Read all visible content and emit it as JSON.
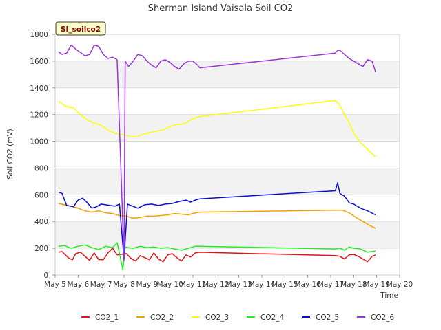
{
  "chart_data": {
    "type": "line",
    "title": "Sherman Island Vaisala Soil CO2",
    "xlabel": "Time",
    "ylabel": "Soil CO2 (mV)",
    "badge": "SI_soilco2",
    "xlim": [
      5,
      20
    ],
    "ylim": [
      0,
      1800
    ],
    "x_ticks": [
      5,
      6,
      7,
      8,
      9,
      10,
      11,
      12,
      13,
      14,
      15,
      16,
      17,
      18,
      19,
      20
    ],
    "x_tick_labels": [
      "May 5",
      "May 6",
      "May 7",
      "May 8",
      "May 9",
      "May 10",
      "May 11",
      "May 12",
      "May 13",
      "May 14",
      "May 15",
      "May 16",
      "May 17",
      "May 18",
      "May 19",
      "May 20"
    ],
    "y_ticks": [
      0,
      200,
      400,
      600,
      800,
      1000,
      1200,
      1400,
      1600,
      1800
    ],
    "y_tick_labels": [
      "0",
      "200",
      "400",
      "600",
      "800",
      "1000",
      "1200",
      "1400",
      "1600",
      "1800"
    ],
    "grid": true,
    "legend_position": "bottom",
    "series": [
      {
        "name": "CO2_1",
        "color": "#e8101a",
        "x": [
          5.15,
          5.3,
          5.45,
          5.6,
          5.75,
          5.9,
          6.1,
          6.3,
          6.5,
          6.7,
          6.9,
          7.1,
          7.3,
          7.5,
          7.7,
          8.1,
          8.3,
          8.5,
          8.7,
          8.9,
          9.1,
          9.3,
          9.5,
          9.7,
          9.9,
          10.1,
          10.3,
          10.5,
          10.7,
          10.9,
          11.1,
          11.3,
          17.2,
          17.4,
          17.6,
          17.8,
          18.0,
          18.2,
          18.4,
          18.6,
          18.8,
          18.95
        ],
        "y": [
          170,
          175,
          150,
          125,
          115,
          160,
          170,
          140,
          110,
          165,
          115,
          115,
          165,
          200,
          150,
          160,
          125,
          105,
          145,
          130,
          115,
          165,
          120,
          100,
          150,
          160,
          130,
          105,
          150,
          135,
          165,
          170,
          145,
          140,
          120,
          150,
          155,
          140,
          120,
          100,
          140,
          150
        ]
      },
      {
        "name": "CO2_2",
        "color": "#f5a000",
        "x": [
          5.15,
          5.4,
          5.7,
          6.0,
          6.3,
          6.6,
          6.9,
          7.2,
          7.5,
          7.8,
          8.1,
          8.4,
          8.7,
          9.0,
          9.3,
          9.6,
          9.9,
          10.2,
          10.5,
          10.8,
          11.1,
          11.3,
          17.2,
          17.5,
          17.8,
          18.1,
          18.4,
          18.7,
          18.95
        ],
        "y": [
          535,
          525,
          515,
          500,
          480,
          470,
          480,
          465,
          460,
          445,
          440,
          425,
          430,
          440,
          440,
          445,
          450,
          460,
          455,
          450,
          465,
          470,
          485,
          485,
          465,
          430,
          400,
          370,
          350
        ]
      },
      {
        "name": "CO2_3",
        "color": "#ffff00",
        "x": [
          5.15,
          5.3,
          5.5,
          5.8,
          6.1,
          6.4,
          6.7,
          7.0,
          7.3,
          7.6,
          7.9,
          8.2,
          8.5,
          8.8,
          9.1,
          9.4,
          9.7,
          10.0,
          10.3,
          10.6,
          10.9,
          11.1,
          11.3,
          17.2,
          17.4,
          17.6,
          17.8,
          18.0,
          18.3,
          18.6,
          18.95
        ],
        "y": [
          1300,
          1280,
          1260,
          1250,
          1200,
          1160,
          1135,
          1120,
          1085,
          1060,
          1050,
          1040,
          1030,
          1050,
          1065,
          1075,
          1085,
          1110,
          1125,
          1130,
          1160,
          1175,
          1185,
          1305,
          1270,
          1200,
          1140,
          1060,
          990,
          940,
          885
        ]
      },
      {
        "name": "CO2_4",
        "color": "#22ee22",
        "x": [
          5.15,
          5.4,
          5.7,
          6.0,
          6.3,
          6.6,
          6.9,
          7.2,
          7.5,
          7.7,
          7.95,
          8.05,
          8.15,
          8.4,
          8.7,
          9.0,
          9.3,
          9.6,
          9.9,
          10.2,
          10.5,
          10.8,
          11.1,
          11.3,
          17.2,
          17.4,
          17.6,
          17.8,
          18.0,
          18.3,
          18.6,
          18.95
        ],
        "y": [
          215,
          220,
          200,
          215,
          225,
          205,
          190,
          215,
          205,
          240,
          40,
          210,
          205,
          200,
          215,
          205,
          210,
          200,
          205,
          195,
          185,
          200,
          215,
          215,
          195,
          200,
          185,
          210,
          200,
          195,
          170,
          180
        ]
      },
      {
        "name": "CO2_5",
        "color": "#0b0bd6",
        "x": [
          5.15,
          5.3,
          5.5,
          5.8,
          6.0,
          6.2,
          6.4,
          6.6,
          6.8,
          7.0,
          7.2,
          7.4,
          7.6,
          7.8,
          8.0,
          8.15,
          8.3,
          8.6,
          8.9,
          9.2,
          9.5,
          9.8,
          10.1,
          10.4,
          10.7,
          10.9,
          11.1,
          11.3,
          17.2,
          17.3,
          17.4,
          17.6,
          17.8,
          18.0,
          18.3,
          18.6,
          18.95
        ],
        "y": [
          620,
          610,
          520,
          510,
          560,
          575,
          540,
          500,
          510,
          530,
          525,
          520,
          515,
          530,
          120,
          530,
          520,
          500,
          525,
          530,
          520,
          530,
          535,
          550,
          560,
          545,
          560,
          570,
          630,
          690,
          610,
          590,
          540,
          530,
          500,
          480,
          450
        ]
      },
      {
        "name": "CO2_6",
        "color": "#9933dd",
        "x": [
          5.15,
          5.3,
          5.5,
          5.7,
          5.9,
          6.1,
          6.3,
          6.5,
          6.7,
          6.9,
          7.1,
          7.3,
          7.5,
          7.7,
          8.0,
          8.05,
          8.2,
          8.4,
          8.6,
          8.8,
          9.0,
          9.2,
          9.4,
          9.6,
          9.8,
          10.0,
          10.2,
          10.4,
          10.6,
          10.8,
          11.0,
          11.2,
          11.3,
          17.2,
          17.3,
          17.4,
          17.6,
          17.8,
          18.0,
          18.2,
          18.4,
          18.6,
          18.8,
          18.95
        ],
        "y": [
          1670,
          1650,
          1660,
          1720,
          1690,
          1665,
          1640,
          1650,
          1720,
          1710,
          1650,
          1620,
          1630,
          1610,
          110,
          1600,
          1560,
          1600,
          1650,
          1640,
          1600,
          1570,
          1550,
          1600,
          1610,
          1590,
          1560,
          1540,
          1580,
          1600,
          1600,
          1570,
          1550,
          1660,
          1680,
          1680,
          1650,
          1620,
          1600,
          1580,
          1560,
          1610,
          1600,
          1520
        ]
      }
    ]
  }
}
